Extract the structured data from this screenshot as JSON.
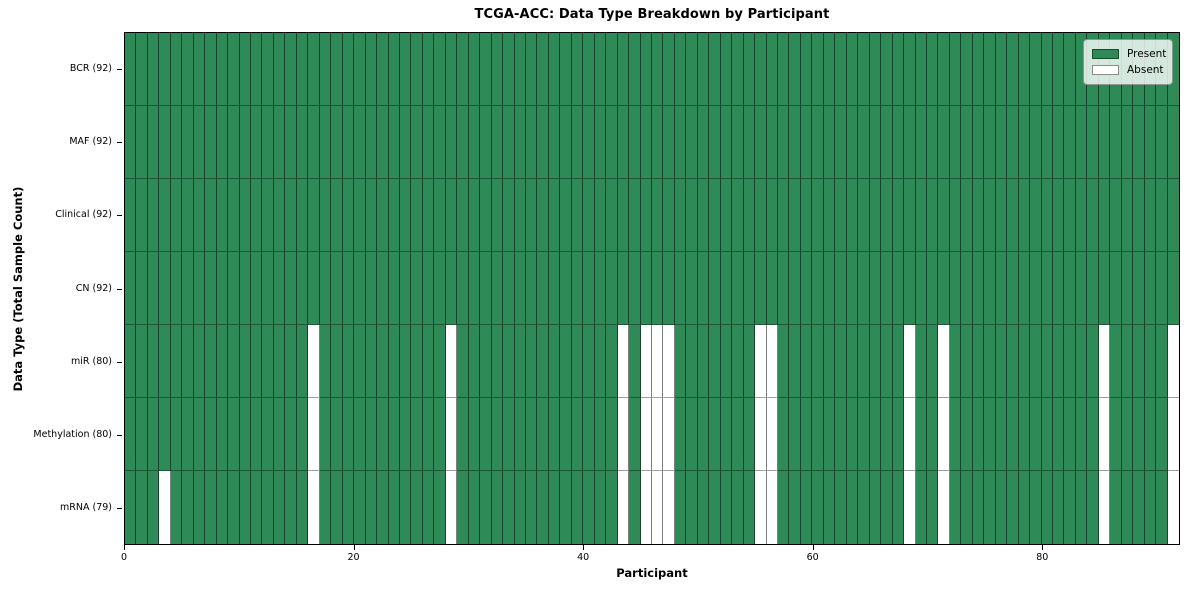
{
  "figure": {
    "title": "TCGA-ACC: Data Type Breakdown by Participant",
    "xlabel": "Participant",
    "ylabel": "Data Type (Total Sample Count)"
  },
  "legend": {
    "present_label": "Present",
    "absent_label": "Absent"
  },
  "colors": {
    "present": "#2e8b57",
    "absent": "#ffffff"
  },
  "chart_data": {
    "type": "heatmap",
    "title": "TCGA-ACC: Data Type Breakdown by Participant",
    "xlabel": "Participant",
    "ylabel": "Data Type (Total Sample Count)",
    "n_participants": 92,
    "x_axis_range": [
      0,
      92
    ],
    "x_ticks": [
      0,
      20,
      40,
      60,
      80
    ],
    "grid": true,
    "legend_position": "upper right",
    "legend_entries": [
      {
        "label": "Present",
        "color": "#2e8b57"
      },
      {
        "label": "Absent",
        "color": "#ffffff"
      }
    ],
    "rows": [
      {
        "label": "BCR (92)",
        "data_type": "BCR",
        "present_count": 92,
        "absent_participants": []
      },
      {
        "label": "MAF (92)",
        "data_type": "MAF",
        "present_count": 92,
        "absent_participants": []
      },
      {
        "label": "Clinical (92)",
        "data_type": "Clinical",
        "present_count": 92,
        "absent_participants": []
      },
      {
        "label": "CN (92)",
        "data_type": "CN",
        "present_count": 92,
        "absent_participants": []
      },
      {
        "label": "miR (80)",
        "data_type": "miR",
        "present_count": 80,
        "absent_participants": [
          16,
          28,
          43,
          45,
          46,
          47,
          55,
          56,
          68,
          71,
          85,
          91
        ]
      },
      {
        "label": "Methylation (80)",
        "data_type": "Methylation",
        "present_count": 80,
        "absent_participants": [
          16,
          28,
          43,
          45,
          46,
          47,
          55,
          56,
          68,
          71,
          85,
          91
        ]
      },
      {
        "label": "mRNA (79)",
        "data_type": "mRNA",
        "present_count": 79,
        "absent_participants": [
          3,
          16,
          28,
          43,
          45,
          46,
          47,
          55,
          56,
          68,
          71,
          85,
          91
        ]
      }
    ]
  }
}
